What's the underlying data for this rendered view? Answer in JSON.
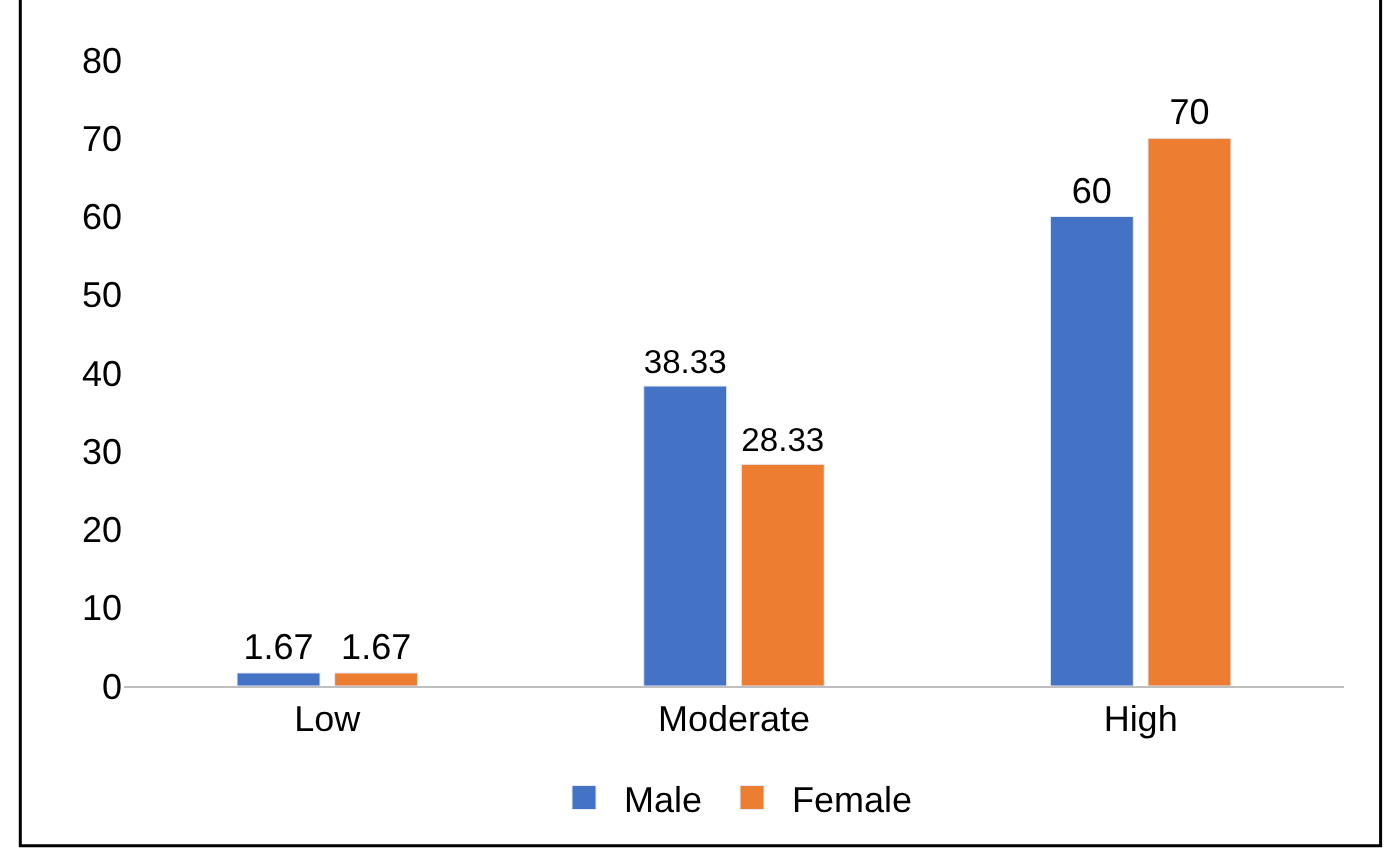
{
  "chart_data": {
    "type": "bar",
    "categories": [
      "Low",
      "Moderate",
      "High"
    ],
    "series": [
      {
        "name": "Male",
        "color": "#4472c4",
        "values": [
          1.67,
          38.33,
          60
        ]
      },
      {
        "name": "Female",
        "color": "#ed7d31",
        "values": [
          1.67,
          28.33,
          70
        ]
      }
    ],
    "ylim": [
      0,
      80
    ],
    "yticks": [
      0,
      10,
      20,
      30,
      40,
      50,
      60,
      70,
      80
    ],
    "grid": false,
    "legend": "bottom",
    "data_labels": true
  }
}
